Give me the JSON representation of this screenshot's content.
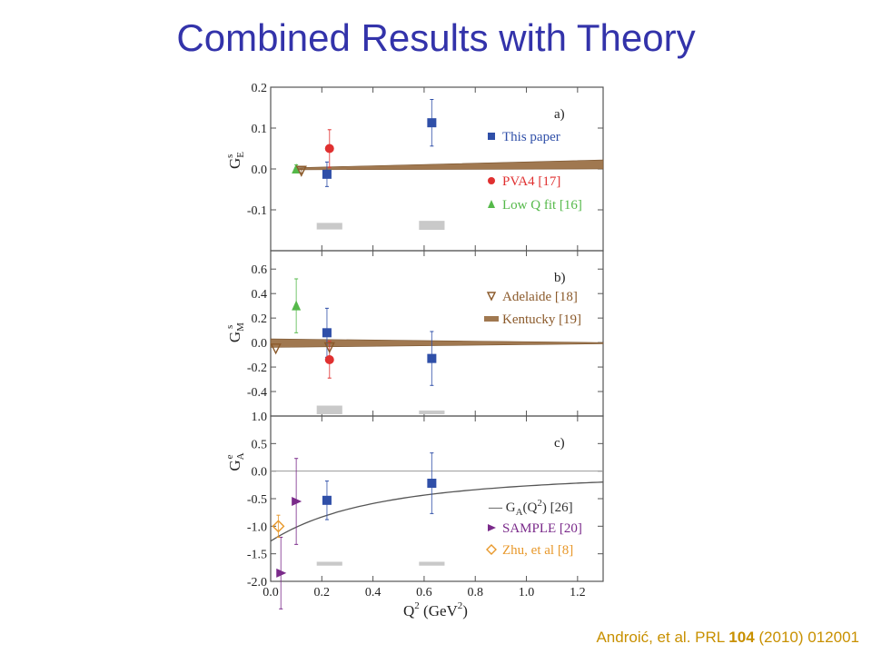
{
  "slide": {
    "title": "Combined Results with Theory",
    "citation": {
      "authors": "Androić, et al. PRL ",
      "volume": "104",
      "rest": " (2010) 012001"
    }
  },
  "colors": {
    "title": "#3333aa",
    "citation": "#c89000",
    "this_paper": "#2f4fa8",
    "pva4": "#e03030",
    "low_q_fit": "#55b94a",
    "adelaide": "#8b5a2b",
    "kentucky": "#a07850",
    "ga_theory": "#555555",
    "sample": "#7a2a8a",
    "zhu": "#e8982a",
    "systematic_bar": "#c9c9c9"
  },
  "chart_data": [
    {
      "type": "scatter",
      "panel": "a)",
      "ylabel": "G_E^s",
      "ylabel_main": "G",
      "ylabel_sup": "s",
      "ylabel_sub": "E",
      "xlim": [
        0.0,
        1.3
      ],
      "ylim": [
        -0.2,
        0.2
      ],
      "yticks": [
        "0.2",
        "0.1",
        "0.0",
        "-0.1"
      ],
      "ytick_values": [
        0.2,
        0.1,
        0.0,
        -0.1
      ],
      "series": [
        {
          "name": "This paper",
          "marker": "square",
          "color": "#2f4fa8",
          "points": [
            {
              "x": 0.22,
              "y": -0.013,
              "err": 0.03
            },
            {
              "x": 0.63,
              "y": 0.113,
              "err": 0.057
            }
          ]
        },
        {
          "name": "PVA4 [17]",
          "marker": "circle",
          "color": "#e03030",
          "points": [
            {
              "x": 0.23,
              "y": 0.05,
              "err": 0.046
            }
          ]
        },
        {
          "name": "Low Q fit [16]",
          "marker": "triangle-up",
          "color": "#55b94a",
          "points": [
            {
              "x": 0.1,
              "y": 0.0,
              "err": 0.01
            }
          ]
        },
        {
          "name": "Adelaide [18]",
          "marker": "triangle-down-open",
          "color": "#8b5a2b",
          "points": [
            {
              "x": 0.12,
              "y": -0.005,
              "err": 0.005
            }
          ]
        }
      ],
      "band": {
        "name": "Kentucky [19]",
        "color": "#a07850",
        "x": [
          0.1,
          1.3
        ],
        "lower": [
          -0.002,
          0.0
        ],
        "upper": [
          0.003,
          0.022
        ]
      },
      "systematics": [
        {
          "x": 0.23,
          "y": -0.14,
          "half_width": 0.05,
          "height": 0.016
        },
        {
          "x": 0.63,
          "y": -0.138,
          "half_width": 0.05,
          "height": 0.022
        }
      ],
      "legend": [
        "This paper",
        "PVA4 [17]",
        "Low Q fit [16]"
      ]
    },
    {
      "type": "scatter",
      "panel": "b)",
      "ylabel": "G_M^s",
      "ylabel_main": "G",
      "ylabel_sup": "s",
      "ylabel_sub": "M",
      "xlim": [
        0.0,
        1.3
      ],
      "ylim": [
        -0.6,
        0.75
      ],
      "yticks": [
        "0.6",
        "0.4",
        "0.2",
        "0.0",
        "-0.2",
        "-0.4"
      ],
      "ytick_values": [
        0.6,
        0.4,
        0.2,
        0.0,
        -0.2,
        -0.4
      ],
      "series": [
        {
          "name": "This paper",
          "marker": "square",
          "color": "#2f4fa8",
          "points": [
            {
              "x": 0.22,
              "y": 0.08,
              "err": 0.2
            },
            {
              "x": 0.63,
              "y": -0.13,
              "err": 0.22
            }
          ]
        },
        {
          "name": "PVA4 [17]",
          "marker": "circle",
          "color": "#e03030",
          "points": [
            {
              "x": 0.23,
              "y": -0.14,
              "err": 0.15
            }
          ]
        },
        {
          "name": "Low Q fit [16]",
          "marker": "triangle-up",
          "color": "#55b94a",
          "points": [
            {
              "x": 0.1,
              "y": 0.3,
              "err": 0.22
            }
          ]
        },
        {
          "name": "Adelaide [18]",
          "marker": "triangle-down-open",
          "color": "#8b5a2b",
          "points": [
            {
              "x": 0.02,
              "y": -0.05,
              "err": 0.0
            },
            {
              "x": 0.23,
              "y": -0.04,
              "err": 0.0
            }
          ]
        }
      ],
      "band": {
        "name": "Kentucky [19]",
        "color": "#a07850",
        "x": [
          0.0,
          1.3
        ],
        "lower": [
          -0.04,
          -0.01
        ],
        "upper": [
          0.03,
          0.0
        ]
      },
      "systematics": [
        {
          "x": 0.23,
          "y": -0.55,
          "half_width": 0.05,
          "height": 0.07
        },
        {
          "x": 0.63,
          "y": -0.57,
          "half_width": 0.05,
          "height": 0.03
        }
      ],
      "legend": [
        "Adelaide [18]",
        "Kentucky [19]"
      ]
    },
    {
      "type": "scatter",
      "panel": "c)",
      "ylabel": "G_A^e",
      "ylabel_main": "G",
      "ylabel_sup": "e",
      "ylabel_sub": "A",
      "xlabel": "Q^2 (GeV^2)",
      "xlabel_main": "Q",
      "xlabel_sup": "2",
      "xlabel_unit": "(GeV",
      "xlabel_unit_sup": "2",
      "xlabel_close": ")",
      "xlim": [
        0.0,
        1.3
      ],
      "ylim": [
        -2.0,
        1.0
      ],
      "yticks": [
        "1.0",
        "0.5",
        "0.0",
        "-0.5",
        "-1.0",
        "-1.5",
        "-2.0"
      ],
      "ytick_values": [
        1.0,
        0.5,
        0.0,
        -0.5,
        -1.0,
        -1.5,
        -2.0
      ],
      "xticks": [
        "0.0",
        "0.2",
        "0.4",
        "0.6",
        "0.8",
        "1.0",
        "1.2"
      ],
      "xtick_values": [
        0.0,
        0.2,
        0.4,
        0.6,
        0.8,
        1.0,
        1.2
      ],
      "series": [
        {
          "name": "This paper",
          "marker": "square",
          "color": "#2f4fa8",
          "points": [
            {
              "x": 0.22,
              "y": -0.53,
              "err": 0.35
            },
            {
              "x": 0.63,
              "y": -0.22,
              "err": 0.55
            }
          ]
        },
        {
          "name": "SAMPLE [20]",
          "marker": "triangle-right",
          "color": "#7a2a8a",
          "points": [
            {
              "x": 0.1,
              "y": -0.55,
              "err": 0.78
            },
            {
              "x": 0.04,
              "y": -1.85,
              "err": 0.65
            }
          ]
        },
        {
          "name": "Zhu, et al [8]",
          "marker": "diamond-open",
          "color": "#e8982a",
          "points": [
            {
              "x": 0.03,
              "y": -1.0,
              "err": 0.2
            }
          ]
        }
      ],
      "curve": {
        "name": "G_A(Q^2) [26]",
        "color": "#555555",
        "a0": -1.27,
        "mass_sq": 0.85
      },
      "zero_line": 0.0,
      "systematics": [
        {
          "x": 0.23,
          "y": -1.68,
          "half_width": 0.05,
          "height": 0.07
        },
        {
          "x": 0.63,
          "y": -1.68,
          "half_width": 0.05,
          "height": 0.07
        }
      ],
      "legend_text": {
        "ga_prefix": "— G",
        "ga_sub": "A",
        "ga_mid": "(Q",
        "ga_sup": "2",
        "ga_suffix": ") [26]",
        "sample": "SAMPLE [20]",
        "zhu": "Zhu, et al [8]"
      }
    }
  ]
}
